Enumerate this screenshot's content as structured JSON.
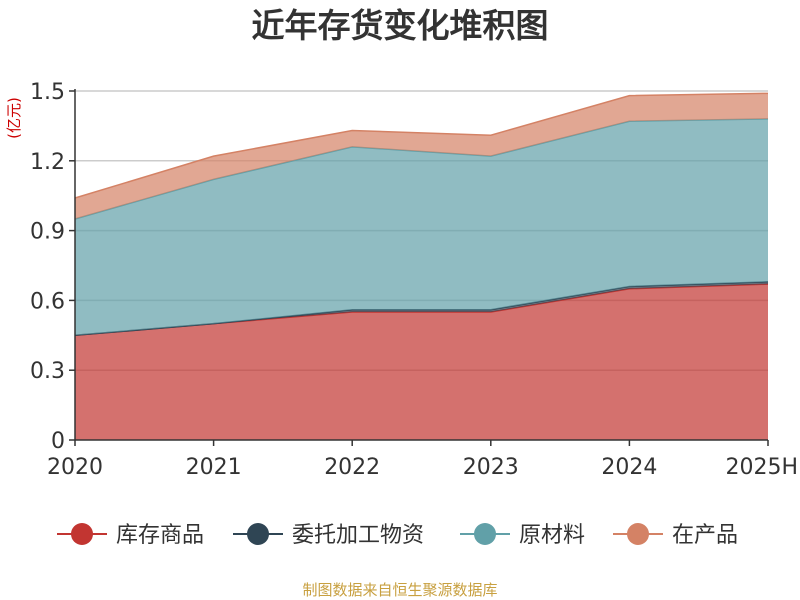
{
  "chart_data": {
    "type": "area",
    "stacked": true,
    "title": "近年存货变化堆积图",
    "unit_label": "(亿元)",
    "categories": [
      "2020",
      "2021",
      "2022",
      "2023",
      "2024",
      "2025H"
    ],
    "ylim": [
      0,
      1.5
    ],
    "y_ticks": [
      0,
      0.3,
      0.6,
      0.9,
      1.2,
      1.5
    ],
    "y_tick_labels": [
      "0",
      "0.3",
      "0.6",
      "0.9",
      "1.2",
      "1.5"
    ],
    "grid": true,
    "legend_position": "bottom",
    "series": [
      {
        "name": "库存商品",
        "color": "#c23531",
        "values": [
          0.45,
          0.5,
          0.55,
          0.55,
          0.65,
          0.67
        ]
      },
      {
        "name": "委托加工物资",
        "color": "#2f4554",
        "values": [
          0.0,
          0.0,
          0.01,
          0.01,
          0.01,
          0.01
        ]
      },
      {
        "name": "原材料",
        "color": "#61a0a8",
        "values": [
          0.5,
          0.62,
          0.7,
          0.66,
          0.71,
          0.7
        ]
      },
      {
        "name": "在产品",
        "color": "#d48265",
        "values": [
          0.09,
          0.1,
          0.07,
          0.09,
          0.11,
          0.11
        ]
      }
    ],
    "source": "制图数据来自恒生聚源数据库"
  }
}
